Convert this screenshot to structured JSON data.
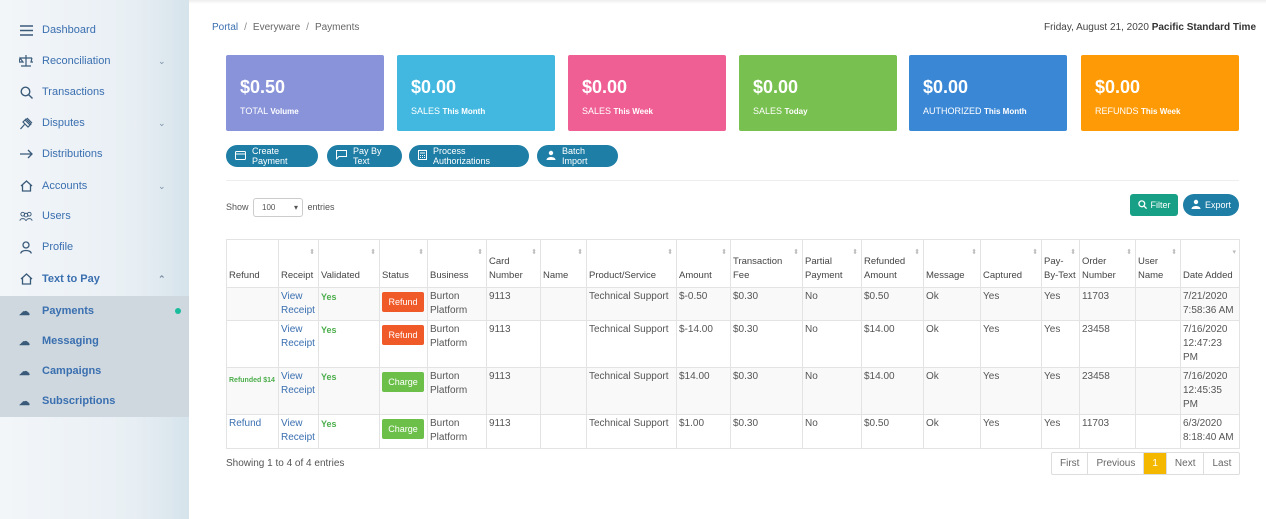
{
  "sidebar": {
    "items": [
      {
        "label": "Dashboard",
        "icon": "menu-icon",
        "chevron": ""
      },
      {
        "label": "Reconciliation",
        "icon": "scale-icon",
        "chevron": "⌄"
      },
      {
        "label": "Transactions",
        "icon": "search-icon",
        "chevron": ""
      },
      {
        "label": "Disputes",
        "icon": "gavel-icon",
        "chevron": "⌄"
      },
      {
        "label": "Distributions",
        "icon": "arrow-right-icon",
        "chevron": ""
      },
      {
        "label": "Accounts",
        "icon": "home-icon",
        "chevron": "⌄"
      },
      {
        "label": "Users",
        "icon": "users-icon",
        "chevron": ""
      },
      {
        "label": "Profile",
        "icon": "user-icon",
        "chevron": ""
      },
      {
        "label": "Text to Pay",
        "icon": "home-icon",
        "chevron": "⌃"
      }
    ],
    "subitems": [
      {
        "label": "Payments",
        "icon": "cloud-icon"
      },
      {
        "label": "Messaging",
        "icon": "cloud-icon"
      },
      {
        "label": "Campaigns",
        "icon": "cloud-icon"
      },
      {
        "label": "Subscriptions",
        "icon": "cloud-icon"
      }
    ]
  },
  "breadcrumb": {
    "portal": "Portal",
    "sep": "/",
    "everyware": "Everyware",
    "payments": "Payments"
  },
  "date": {
    "text": "Friday, August 21, 2020",
    "tz": "Pacific Standard Time"
  },
  "cards": [
    {
      "value": "$0.50",
      "label": "TOTAL",
      "label_bold": "Volume",
      "color": "#8893d9"
    },
    {
      "value": "$0.00",
      "label": "SALES",
      "label_bold": "This Month",
      "color": "#42b8e0"
    },
    {
      "value": "$0.00",
      "label": "SALES",
      "label_bold": "This Week",
      "color": "#ef5f94"
    },
    {
      "value": "$0.00",
      "label": "SALES",
      "label_bold": "Today",
      "color": "#78c04f"
    },
    {
      "value": "$0.00",
      "label": "AUTHORIZED",
      "label_bold": "This Month",
      "color": "#3a87d5"
    },
    {
      "value": "$0.00",
      "label": "REFUNDS",
      "label_bold": "This Week",
      "color": "#fd9a05"
    }
  ],
  "actions": {
    "create": "Create Payment",
    "paybytext": "Pay By Text",
    "process": "Process Authorizations",
    "batch": "Batch Import"
  },
  "controls": {
    "show": "Show",
    "entries_value": "100",
    "entries": "entries",
    "filter": "Filter",
    "export": "Export"
  },
  "table": {
    "headers": [
      "Refund",
      "Receipt",
      "Validated",
      "Status",
      "Business",
      "Card Number",
      "Name",
      "Product/Service",
      "Amount",
      "Transaction Fee",
      "Partial Payment",
      "Refunded Amount",
      "Message",
      "Captured",
      "Pay-By-Text",
      "Order Number",
      "User Name",
      "Date Added"
    ],
    "rows": [
      {
        "refund": "",
        "refund_note": "",
        "receipt": "View Receipt",
        "validated": "Yes",
        "status": "Refund",
        "business": "Burton Platform",
        "card": "9113",
        "name": "",
        "product": "Technical Support",
        "amount": "$-0.50",
        "fee": "$0.30",
        "partial": "No",
        "refunded": "$0.50",
        "message": "Ok",
        "captured": "Yes",
        "pbt": "Yes",
        "order": "11703",
        "user": "",
        "date": "7/21/2020 7:58:36 AM"
      },
      {
        "refund": "",
        "refund_note": "",
        "receipt": "View Receipt",
        "validated": "Yes",
        "status": "Refund",
        "business": "Burton Platform",
        "card": "9113",
        "name": "",
        "product": "Technical Support",
        "amount": "$-14.00",
        "fee": "$0.30",
        "partial": "No",
        "refunded": "$14.00",
        "message": "Ok",
        "captured": "Yes",
        "pbt": "Yes",
        "order": "23458",
        "user": "",
        "date": "7/16/2020 12:47:23 PM"
      },
      {
        "refund": "",
        "refund_note": "Refunded $14",
        "receipt": "View Receipt",
        "validated": "Yes",
        "status": "Charge",
        "business": "Burton Platform",
        "card": "9113",
        "name": "",
        "product": "Technical Support",
        "amount": "$14.00",
        "fee": "$0.30",
        "partial": "No",
        "refunded": "$14.00",
        "message": "Ok",
        "captured": "Yes",
        "pbt": "Yes",
        "order": "23458",
        "user": "",
        "date": "7/16/2020 12:45:35 PM"
      },
      {
        "refund": "Refund",
        "refund_note": "",
        "receipt": "View Receipt",
        "validated": "Yes",
        "status": "Charge",
        "business": "Burton Platform",
        "card": "9113",
        "name": "",
        "product": "Technical Support",
        "amount": "$1.00",
        "fee": "$0.30",
        "partial": "No",
        "refunded": "$0.50",
        "message": "Ok",
        "captured": "Yes",
        "pbt": "Yes",
        "order": "11703",
        "user": "",
        "date": "6/3/2020 8:18:40 AM"
      }
    ]
  },
  "footer": {
    "info": "Showing 1 to 4 of 4 entries",
    "first": "First",
    "previous": "Previous",
    "page": "1",
    "next": "Next",
    "last": "Last"
  }
}
